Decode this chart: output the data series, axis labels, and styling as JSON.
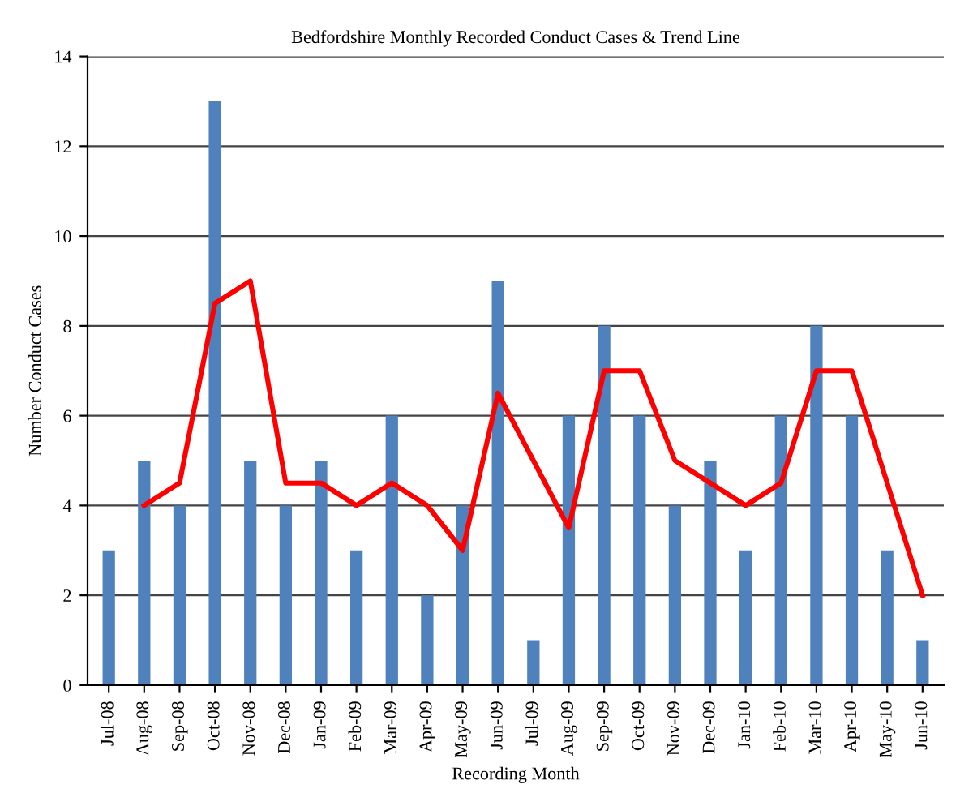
{
  "chart_data": {
    "type": "bar",
    "title": "Bedfordshire Monthly Recorded Conduct Cases & Trend Line",
    "xlabel": "Recording Month",
    "ylabel": "Number Conduct Cases",
    "categories": [
      "Jul-08",
      "Aug-08",
      "Sep-08",
      "Oct-08",
      "Nov-08",
      "Dec-08",
      "Jan-09",
      "Feb-09",
      "Mar-09",
      "Apr-09",
      "May-09",
      "Jun-09",
      "Jul-09",
      "Aug-09",
      "Sep-09",
      "Oct-09",
      "Nov-09",
      "Dec-09",
      "Jan-10",
      "Feb-10",
      "Mar-10",
      "Apr-10",
      "May-10",
      "Jun-10"
    ],
    "series": [
      {
        "color": "#4f81bd",
        "values": [
          3,
          5,
          4,
          13,
          5,
          4,
          5,
          3,
          6,
          2,
          4,
          9,
          1,
          6,
          8,
          6,
          4,
          5,
          3,
          6,
          8,
          6,
          3,
          1
        ]
      },
      {
        "type": "line",
        "color": "#ff0000",
        "values": [
          null,
          4,
          4.5,
          8.5,
          9,
          4.5,
          4.5,
          4,
          4.5,
          4,
          3,
          6.5,
          5,
          3.5,
          7,
          7,
          5,
          4.5,
          4,
          4.5,
          7,
          7,
          4.5,
          2
        ]
      }
    ],
    "ylim": [
      0,
      14
    ],
    "yticks": [
      0,
      2,
      4,
      6,
      8,
      10,
      12,
      14
    ],
    "grid": "y",
    "legend": false,
    "marker": "none",
    "line_style": "solid"
  }
}
